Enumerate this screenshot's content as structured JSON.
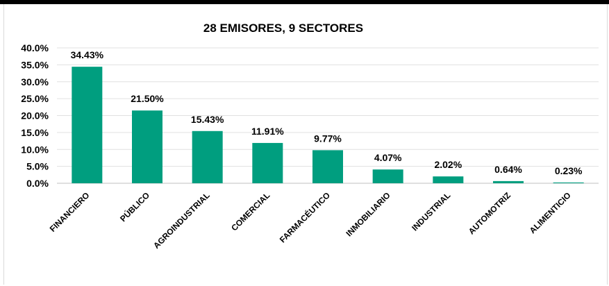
{
  "chart_data": {
    "type": "bar",
    "title": "28 EMISORES, 9 SECTORES",
    "xlabel": "",
    "ylabel": "",
    "ylim": [
      0,
      0.4
    ],
    "y_ticks": [
      "0.0%",
      "5.0%",
      "10.0%",
      "15.0%",
      "20.0%",
      "25.0%",
      "30.0%",
      "35.0%",
      "40.0%"
    ],
    "grid": true,
    "legend": "none",
    "bar_color": "#009e7f",
    "categories": [
      "FINANCIERO",
      "PÚBLICO",
      "AGROINDUSTRIAL",
      "COMERCIAL",
      "FARMACÉUTICO",
      "INMOBILIARIO",
      "INDUSTRIAL",
      "AUTOMOTRIZ",
      "ALIMENTICIO"
    ],
    "values": [
      0.3443,
      0.215,
      0.1543,
      0.1191,
      0.0977,
      0.0407,
      0.0202,
      0.0064,
      0.0023
    ],
    "data_labels": [
      "34.43%",
      "21.50%",
      "15.43%",
      "11.91%",
      "9.77%",
      "4.07%",
      "2.02%",
      "0.64%",
      "0.23%"
    ]
  }
}
